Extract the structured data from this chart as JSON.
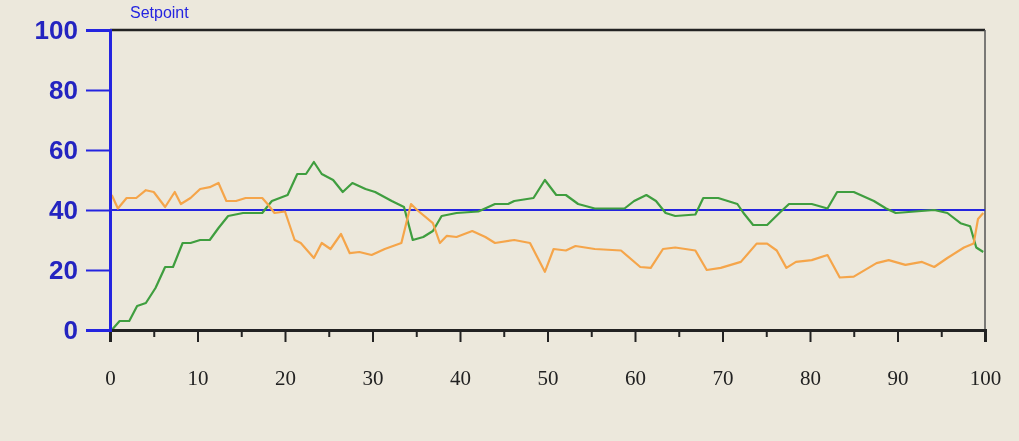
{
  "chart_data": {
    "type": "line",
    "xlim": [
      0,
      100
    ],
    "ylim": [
      0,
      100
    ],
    "xticks": [
      0,
      {
        "value": 5,
        "label": null
      },
      10,
      {
        "value": 15,
        "label": null
      },
      20,
      {
        "value": 25,
        "label": null
      },
      30,
      {
        "value": 35,
        "label": null
      },
      40,
      {
        "value": 45,
        "label": null
      },
      50,
      {
        "value": 55,
        "label": null
      },
      60,
      {
        "value": 65,
        "label": null
      },
      70,
      {
        "value": 75,
        "label": null
      },
      80,
      {
        "value": 85,
        "label": null
      },
      90,
      {
        "value": 95,
        "label": null
      },
      100
    ],
    "yticks": [
      0,
      20,
      40,
      60,
      80,
      100
    ],
    "grid": false,
    "ref_lines": [
      {
        "axis": "y",
        "value": 40,
        "label": "Setpoint",
        "color": "#2424e0"
      }
    ],
    "series": [
      {
        "color": "#3f9e3f",
        "x": [
          0.2,
          1.1,
          2.2,
          3.1,
          4.1,
          5.2,
          6.3,
          7.2,
          8.3,
          9.2,
          10.3,
          11.4,
          12.4,
          13.5,
          15.2,
          17.4,
          18.5,
          20.3,
          21.4,
          22.4,
          23.3,
          24.2,
          25.5,
          26.6,
          27.7,
          29.2,
          30.3,
          32.2,
          33.6,
          34.6,
          35.8,
          36.9,
          37.9,
          39.6,
          42.1,
          44.0,
          45.5,
          46.2,
          48.4,
          49.7,
          51.0,
          52.1,
          53.5,
          55.4,
          58.8,
          59.9,
          61.3,
          62.4,
          63.5,
          64.6,
          66.9,
          67.8,
          69.5,
          71.7,
          72.4,
          73.5,
          75.1,
          76.5,
          77.6,
          80.2,
          82.0,
          83.1,
          85.0,
          87.3,
          88.7,
          89.8,
          94.2,
          95.7,
          97.2,
          98.3,
          99.0,
          99.8
        ],
        "values": [
          0,
          3,
          3,
          8,
          9,
          14,
          21,
          21,
          29,
          29,
          30,
          30,
          34,
          38,
          39,
          39,
          43,
          45,
          52,
          52,
          56,
          52,
          50,
          46,
          49,
          47,
          46,
          43,
          41,
          30,
          31,
          33,
          38,
          39,
          39.5,
          42,
          42,
          43,
          44,
          50,
          45,
          45,
          42,
          40.5,
          40.5,
          43,
          45,
          43,
          39,
          38,
          38.5,
          44,
          44,
          42,
          39,
          35,
          35,
          39,
          42,
          42,
          40.5,
          46,
          46,
          43,
          40.5,
          39,
          40,
          39,
          35.6,
          34.6,
          27.5,
          26
        ]
      },
      {
        "color": "#f5a54a",
        "x": [
          0.2,
          0.9,
          1.9,
          3.0,
          4.1,
          5.0,
          6.3,
          7.4,
          8.1,
          9.2,
          10.3,
          11.4,
          12.4,
          13.3,
          14.4,
          15.5,
          16.6,
          17.4,
          18.0,
          18.8,
          20.0,
          21.1,
          21.8,
          23.3,
          24.2,
          25.2,
          26.4,
          27.4,
          28.5,
          29.9,
          31.4,
          33.3,
          34.4,
          35.1,
          36.9,
          37.7,
          38.5,
          39.6,
          41.4,
          42.9,
          44.0,
          46.2,
          48.0,
          49.7,
          50.7,
          52.1,
          53.2,
          55.4,
          58.4,
          60.6,
          61.8,
          63.2,
          64.6,
          66.9,
          68.2,
          69.8,
          72.1,
          73.9,
          75.1,
          76.2,
          77.3,
          78.4,
          80.2,
          82.0,
          83.4,
          85.0,
          87.6,
          89.0,
          90.9,
          92.8,
          94.2,
          95.7,
          97.6,
          98.7,
          99.2,
          99.8
        ],
        "values": [
          45,
          40.5,
          44,
          44,
          46.6,
          46,
          41,
          46,
          42,
          44,
          47,
          47.6,
          49,
          43,
          43,
          44,
          44,
          44,
          42,
          39,
          39.5,
          30,
          29,
          24,
          29,
          27,
          32,
          25.6,
          26,
          25,
          27,
          29,
          42,
          40,
          35.6,
          29,
          31.4,
          31,
          33,
          31,
          29,
          30,
          29,
          19.4,
          27,
          26.5,
          28,
          27,
          26.5,
          21,
          20.7,
          27,
          27.5,
          26.5,
          20,
          20.7,
          22.7,
          28.8,
          28.8,
          26.5,
          20.7,
          22.7,
          23.3,
          25,
          17.5,
          17.8,
          22.3,
          23.3,
          21.7,
          22.7,
          21,
          24,
          27.5,
          28.8,
          37,
          39
        ]
      }
    ]
  }
}
